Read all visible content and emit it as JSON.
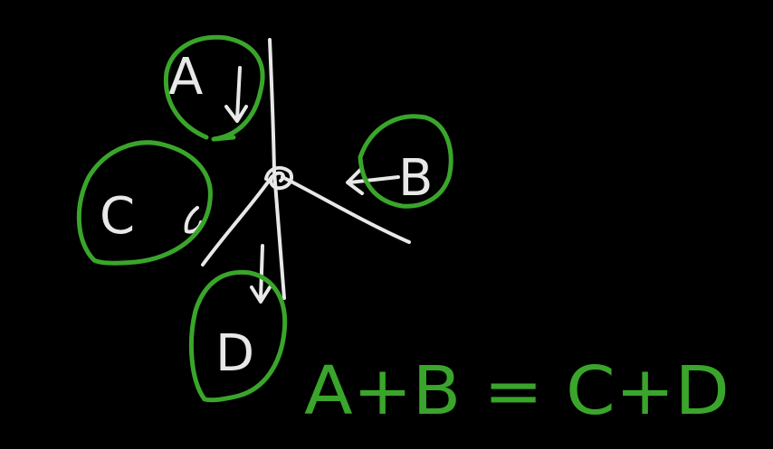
{
  "diagram": {
    "labels": {
      "a": "A",
      "b": "B",
      "c": "C",
      "d": "D"
    },
    "equation": "A+B = C+D"
  },
  "colors": {
    "background": "#000000",
    "chalk": "#e8e8e8",
    "marker": "#3aa52b"
  }
}
